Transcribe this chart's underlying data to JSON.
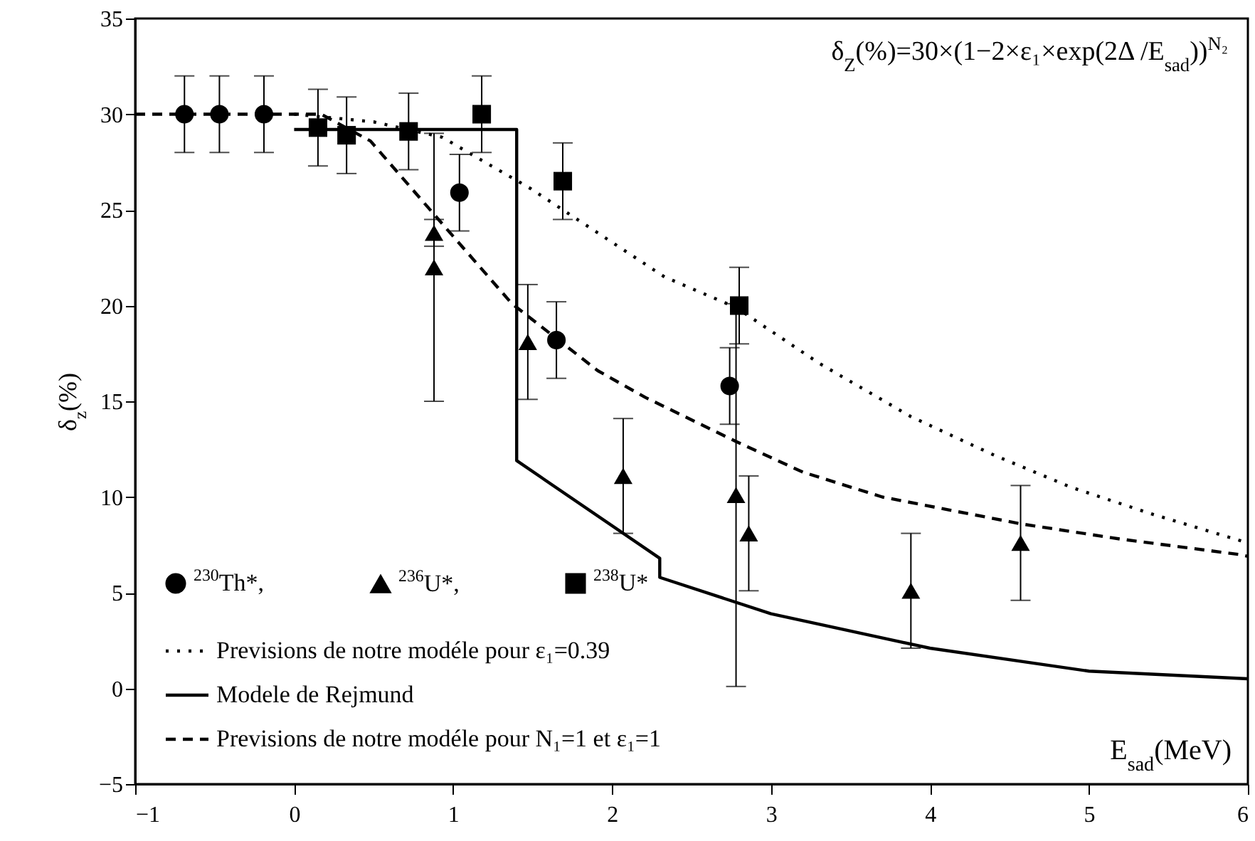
{
  "chart_data": {
    "type": "scatter",
    "xlabel": "E$_{sad}$(MeV)",
    "ylabel": "δ$_{z}$(%)",
    "annotations": [
      "δ$_{Z}$(%)=30×(1−2×ε₁×exp(2Δ /E$_{sad}$))$^{N₂}$"
    ],
    "xlim": [
      -1,
      6
    ],
    "xticks": [
      -1,
      0,
      1,
      2,
      3,
      4,
      5,
      6
    ],
    "ylim": [
      -5,
      35
    ],
    "yticks": [
      -5,
      0,
      5,
      10,
      15,
      20,
      25,
      30,
      35
    ],
    "grid": false,
    "legend": "bottom left",
    "series": [
      {
        "name": "$^{230}$Th*,",
        "type": "scatter",
        "marker": "circle",
        "color": "#000000",
        "x": [
          -0.69,
          -0.47,
          -0.19,
          1.04,
          1.65,
          2.74
        ],
        "values": [
          30,
          30,
          30,
          25.9,
          18.2,
          15.8
        ],
        "errors": [
          2,
          2,
          2,
          2,
          2,
          2
        ]
      },
      {
        "name": "$^{236}$U*,",
        "type": "scatter",
        "marker": "triangle",
        "color": "#000000",
        "x": [
          0.88,
          0.88,
          1.47,
          2.07,
          2.78,
          2.86,
          3.88,
          4.57
        ],
        "values": [
          23.8,
          22.0,
          18.1,
          11.1,
          10.1,
          8.1,
          5.1,
          7.6
        ],
        "errors": [
          0.7,
          7,
          3,
          3,
          10,
          3,
          3,
          3
        ]
      },
      {
        "name": "$^{238}$U*",
        "type": "scatter",
        "marker": "square",
        "color": "#000000",
        "x": [
          0.15,
          0.33,
          0.72,
          1.18,
          1.69,
          2.8
        ],
        "values": [
          29.3,
          28.9,
          29.1,
          30,
          26.5,
          20.0
        ],
        "errors": [
          2,
          2,
          2,
          2,
          2,
          2
        ]
      },
      {
        "name": "Previsions de notre modéle  pour ε₁=0.39",
        "type": "line",
        "line_style": "dotted",
        "color": "#000000",
        "x": [
          0.0,
          0.5,
          0.93,
          1.49,
          1.91,
          2.33,
          2.78,
          3.3,
          3.88,
          4.4,
          4.89,
          5.4,
          5.88,
          6.0
        ],
        "values": [
          30,
          29.6,
          28.8,
          26.1,
          23.8,
          21.5,
          19.9,
          17.0,
          14.2,
          12.2,
          10.5,
          9.1,
          7.9,
          7.6
        ]
      },
      {
        "name": "Modele de Rejmund",
        "type": "line",
        "line_style": "solid",
        "color": "#000000",
        "x": [
          0,
          1.4,
          1.4,
          2.3,
          2.3,
          3.0,
          4.0,
          5.0,
          6.0
        ],
        "values": [
          29.2,
          29.2,
          11.9,
          6.8,
          5.8,
          3.9,
          2.1,
          0.9,
          0.5
        ]
      },
      {
        "name": "Previsions de notre modéle  pour N₁=1 et  ε₁=1",
        "type": "line",
        "line_style": "dashed",
        "color": "#000000",
        "x": [
          -1,
          0.17,
          0.48,
          0.95,
          1.37,
          1.91,
          2.21,
          2.78,
          3.2,
          3.7,
          4.57,
          5.2,
          5.94,
          6.0
        ],
        "values": [
          30,
          30,
          28.6,
          24.1,
          20.1,
          16.6,
          15.2,
          12.9,
          11.3,
          10.0,
          8.6,
          7.8,
          7.0,
          6.9
        ]
      }
    ]
  }
}
